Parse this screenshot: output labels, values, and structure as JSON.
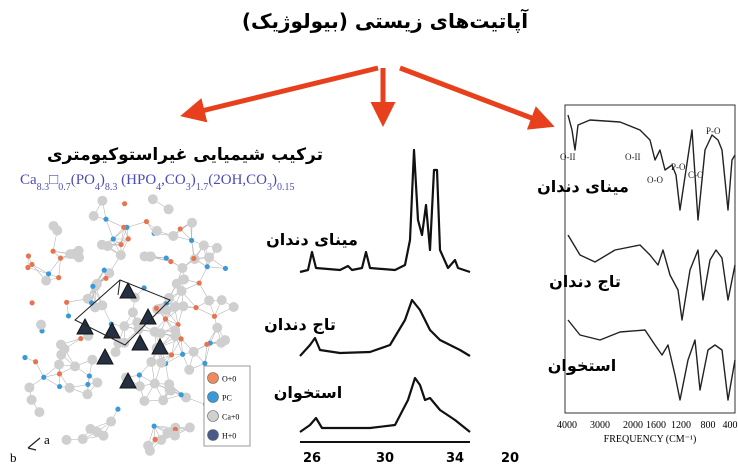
{
  "header": {
    "title": "آپاتیت‌های زیستی (بیولوژیک)"
  },
  "left": {
    "title": "ترکیب شیمیایی غیراستوکیومتری",
    "formula": [
      {
        "text": "Ca",
        "sub": false
      },
      {
        "text": "8.3",
        "sub": true
      },
      {
        "text": "□",
        "sub": false
      },
      {
        "text": "0.7",
        "sub": true
      },
      {
        "text": "(PO",
        "sub": false
      },
      {
        "text": "4",
        "sub": true
      },
      {
        "text": ")",
        "sub": false
      },
      {
        "text": "8.3",
        "sub": true
      },
      {
        "text": " (HPO",
        "sub": false
      },
      {
        "text": "4",
        "sub": true
      },
      {
        "text": ",CO",
        "sub": false
      },
      {
        "text": "3",
        "sub": true
      },
      {
        "text": ")",
        "sub": false
      },
      {
        "text": "1.7",
        "sub": true
      },
      {
        "text": "(2OH,CO",
        "sub": false
      },
      {
        "text": "3",
        "sub": true
      },
      {
        "text": ")",
        "sub": false
      },
      {
        "text": "0.15",
        "sub": true
      }
    ],
    "legend": [
      {
        "label": "O+0",
        "color": "#f08a5d"
      },
      {
        "label": "PC",
        "color": "#3a9ad9"
      },
      {
        "label": "Ca+0",
        "color": "#d0d0d0"
      },
      {
        "label": "H+0",
        "color": "#4a5a8a"
      }
    ],
    "axis_a": "a",
    "axis_b": "b"
  },
  "xrd": {
    "labels": [
      "مینای دندان",
      "تاج دندان",
      "استخوان"
    ],
    "ticks": [
      "26",
      "30",
      "34",
      "20"
    ]
  },
  "ftir": {
    "labels": [
      "مینای دندان",
      "تاج دندان",
      "استخوان"
    ],
    "peaks": [
      "O-II",
      "O-II",
      "O-O",
      "P-O",
      "C-O",
      "P-O"
    ],
    "ticks": [
      "4000",
      "3000",
      "2000",
      "1600",
      "1200",
      "800",
      "400"
    ],
    "axis_title": "FREQUENCY (CM⁻¹)"
  }
}
